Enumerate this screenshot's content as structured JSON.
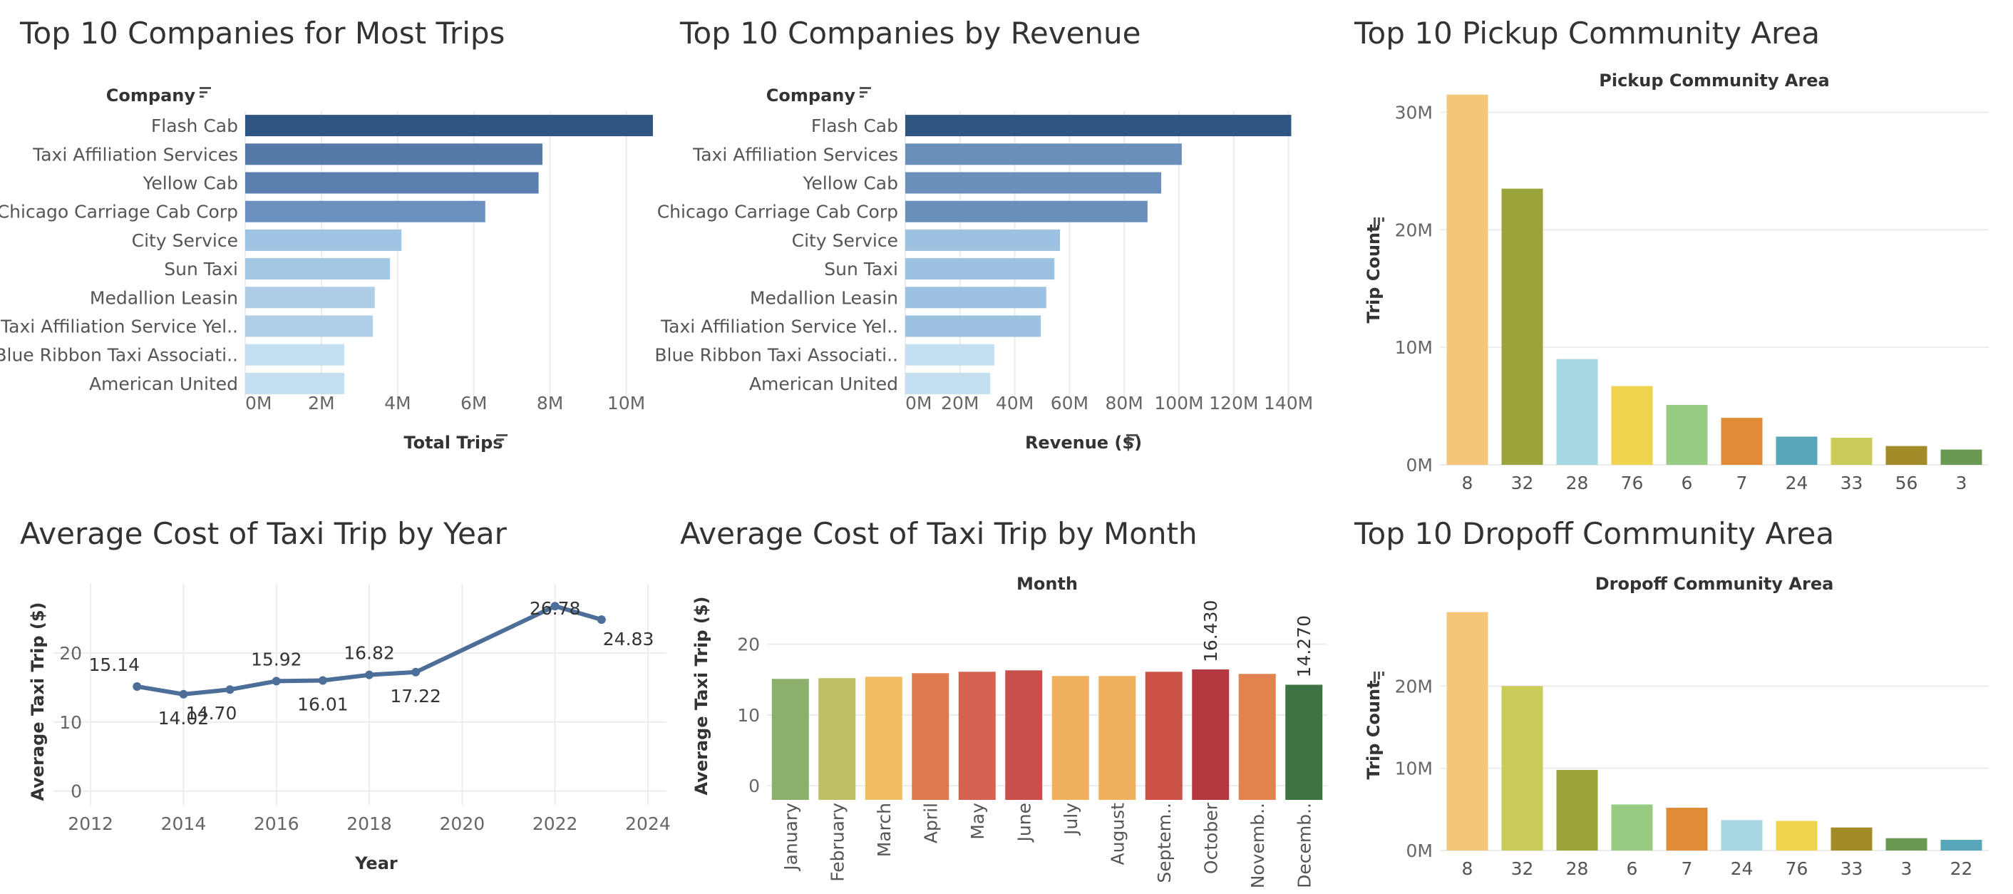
{
  "panels": {
    "trips": {
      "title": "Top 10 Companies for Most Trips",
      "chart_data": {
        "type": "bar",
        "orientation": "horizontal",
        "ylabel": "Company",
        "xlabel": "Total Trips",
        "categories": [
          "Flash Cab",
          "Taxi Affiliation Services",
          "Yellow Cab",
          "Chicago Carriage Cab Corp",
          "City Service",
          "Sun Taxi",
          "Medallion Leasin",
          "Taxi Affiliation Service Yel..",
          "Blue Ribbon Taxi Associati..",
          "American United"
        ],
        "values": [
          10700000,
          7800000,
          7700000,
          6300000,
          4100000,
          3800000,
          3400000,
          3350000,
          2600000,
          2600000
        ],
        "colors": [
          "#2f5683",
          "#5479a6",
          "#5b7fae",
          "#6c90bf",
          "#9fc3e2",
          "#a3c6e3",
          "#afcde6",
          "#b0cee7",
          "#c3dff0",
          "#c3dff0"
        ],
        "xlim": [
          0,
          11000000
        ],
        "xticks": [
          0,
          2000000,
          4000000,
          6000000,
          8000000,
          10000000
        ],
        "xtick_labels": [
          "0M",
          "2M",
          "4M",
          "6M",
          "8M",
          "10M"
        ]
      }
    },
    "revenue": {
      "title": "Top 10 Companies by Revenue",
      "chart_data": {
        "type": "bar",
        "orientation": "horizontal",
        "ylabel": "Company",
        "xlabel": "Revenue ($)",
        "categories": [
          "Flash Cab",
          "Taxi Affiliation Services",
          "Yellow Cab",
          "Chicago Carriage Cab Corp",
          "City Service",
          "Sun Taxi",
          "Medallion Leasin",
          "Taxi Affiliation Service Yel..",
          "Blue Ribbon Taxi Associati..",
          "American United"
        ],
        "values": [
          141000000,
          101000000,
          93500000,
          88500000,
          56500000,
          54500000,
          51500000,
          49500000,
          32500000,
          31000000
        ],
        "colors": [
          "#2f5683",
          "#6a8fbb",
          "#6a8fbb",
          "#6a8fbb",
          "#9dc1e0",
          "#9dc1e0",
          "#9dc1e0",
          "#9dc1e0",
          "#c3dff0",
          "#c3dff0"
        ],
        "xlim": [
          0,
          150000000
        ],
        "xticks": [
          0,
          20000000,
          40000000,
          60000000,
          80000000,
          100000000,
          120000000,
          140000000
        ],
        "xtick_labels": [
          "0M",
          "20M",
          "40M",
          "60M",
          "80M",
          "100M",
          "120M",
          "140M"
        ]
      }
    },
    "pickup": {
      "title": "Top 10 Pickup Community Area",
      "chart_data": {
        "type": "bar",
        "title": "Pickup Community Area",
        "ylabel": "Trip Count",
        "categories": [
          "8",
          "32",
          "28",
          "76",
          "6",
          "7",
          "24",
          "33",
          "56",
          "3"
        ],
        "values": [
          31500000,
          23500000,
          9000000,
          6700000,
          5100000,
          4000000,
          2400000,
          2300000,
          1600000,
          1300000
        ],
        "colors": [
          "#f4c778",
          "#9ba33b",
          "#a8d6e2",
          "#f0d34f",
          "#98cc83",
          "#e08b35",
          "#58a6b9",
          "#c9cc59",
          "#a28a29",
          "#6a9a52"
        ],
        "ylim": [
          0,
          33000000
        ],
        "yticks": [
          0,
          10000000,
          20000000,
          30000000
        ],
        "ytick_labels": [
          "0M",
          "10M",
          "20M",
          "30M"
        ]
      }
    },
    "year": {
      "title": "Average Cost of Taxi Trip by Year",
      "chart_data": {
        "type": "line",
        "xlabel": "Year",
        "ylabel": "Average Taxi Trip ($)",
        "x": [
          2013,
          2014,
          2015,
          2016,
          2017,
          2018,
          2019,
          2022,
          2023
        ],
        "values": [
          15.14,
          14.02,
          14.7,
          15.92,
          16.01,
          16.82,
          17.22,
          26.78,
          24.83
        ],
        "labels": [
          "15.14",
          "14.02",
          "14.70",
          "15.92",
          "16.01",
          "16.82",
          "17.22",
          "26.78",
          "24.83"
        ],
        "color": "#4e6e9a",
        "xlim": [
          2011.2,
          2024.4
        ],
        "ylim": [
          -2,
          30
        ],
        "xticks": [
          2012,
          2014,
          2016,
          2018,
          2020,
          2022,
          2024
        ],
        "yticks": [
          0,
          10,
          20
        ]
      }
    },
    "month": {
      "title": "Average Cost of Taxi Trip by Month",
      "chart_data": {
        "type": "bar",
        "title": "Month",
        "ylabel": "Average Taxi Trip ($)",
        "categories": [
          "January",
          "February",
          "March",
          "April",
          "May",
          "June",
          "July",
          "August",
          "Septem..",
          "October",
          "Novemb..",
          "Decemb.."
        ],
        "values": [
          15.1,
          15.2,
          15.4,
          15.9,
          16.1,
          16.3,
          15.5,
          15.5,
          16.1,
          16.43,
          15.8,
          14.27
        ],
        "labels": [
          "",
          "",
          "",
          "",
          "",
          "",
          "",
          "",
          "",
          "16.430",
          "",
          "14.270"
        ],
        "colors": [
          "#8ab06b",
          "#bdc064",
          "#f0bd65",
          "#df7a4e",
          "#d46250",
          "#c94f4b",
          "#f0b05e",
          "#f0b05e",
          "#cc5248",
          "#b33840",
          "#e2824f",
          "#3e7442"
        ],
        "ylim": [
          -2,
          26
        ],
        "yticks": [
          0,
          10,
          20
        ]
      }
    },
    "dropoff": {
      "title": "Top 10 Dropoff Community Area",
      "chart_data": {
        "type": "bar",
        "title": "Dropoff Community Area",
        "ylabel": "Trip Count",
        "categories": [
          "8",
          "32",
          "28",
          "6",
          "7",
          "24",
          "76",
          "33",
          "3",
          "22"
        ],
        "values": [
          29000000,
          20000000,
          9800000,
          5600000,
          5200000,
          3700000,
          3600000,
          2800000,
          1500000,
          1300000
        ],
        "colors": [
          "#f4c778",
          "#c9cc59",
          "#9ba33b",
          "#98cc83",
          "#e08b35",
          "#a8d6e2",
          "#f0d34f",
          "#a28a29",
          "#6a9a52",
          "#58a6b9"
        ],
        "ylim": [
          0,
          30000000
        ],
        "yticks": [
          0,
          10000000,
          20000000
        ],
        "ytick_labels": [
          "0M",
          "10M",
          "20M"
        ]
      }
    }
  }
}
